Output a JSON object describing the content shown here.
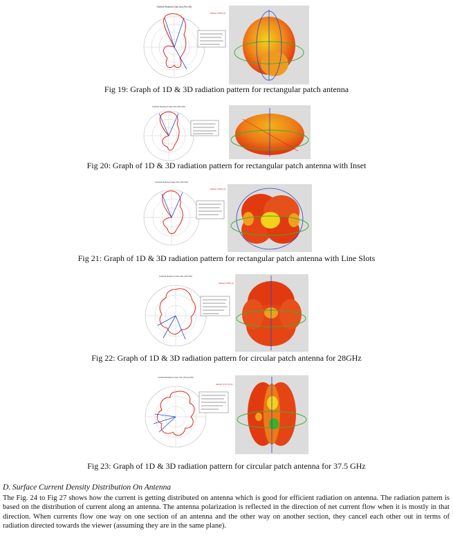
{
  "figures": [
    {
      "id": "fig19",
      "caption": "Fig 19: Graph of 1D & 3D radiation pattern for rectangular patch antenna",
      "polar_plot": {
        "title": "Farfield Realized Gain Abs (Phi=90)",
        "legend": "farfield (f=28) [1]"
      },
      "pattern_3d": {
        "variant": "ball"
      }
    },
    {
      "id": "fig20",
      "caption": "Fig 20: Graph of 1D & 3D radiation pattern for rectangular patch antenna with Inset",
      "polar_plot": {
        "title": "Farfield Realized Gain Abs (Phi=90)",
        "legend": ""
      },
      "pattern_3d": {
        "variant": "dome"
      }
    },
    {
      "id": "fig21",
      "caption": "Fig 21: Graph of 1D & 3D radiation pattern for rectangular patch antenna with Line Slots",
      "polar_plot": {
        "title": "Farfield Realized Gain Abs (Phi=90)",
        "legend": "farfield (f=28) [1]"
      },
      "pattern_3d": {
        "variant": "lobed"
      }
    },
    {
      "id": "fig22",
      "caption": "Fig 22: Graph of 1D & 3D radiation pattern for circular patch antenna for 28GHz",
      "polar_plot": {
        "title": "Farfield Realized Gain Abs (Phi=90)",
        "legend": "farfield (f=28) [1]"
      },
      "pattern_3d": {
        "variant": "cluster"
      }
    },
    {
      "id": "fig23",
      "caption": "Fig 23: Graph of 1D & 3D radiation pattern for circular patch antenna for 37.5 GHz",
      "polar_plot": {
        "title": "Farfield Realized Gain Abs (Theta=90)",
        "legend": "farfield (f=37.5) [1]"
      },
      "pattern_3d": {
        "variant": "segmented"
      }
    }
  ],
  "section": {
    "heading": "D.   Surface Current Density Distribution On Antenna",
    "body": "The Fig. 24 to Fig 27 shows how the current is getting distributed on antenna which is good for efficient radiation on antenna. The radiation pattern is based on the distribution of current along an antenna. The antenna polarization is reflected in the direction of net current flow when it is mostly in that direction. When currents flow one way on one section of an antenna and the other way on another section, they cancel each other out in terms of radiation directed towards the viewer (assuming they are in the same plane)."
  },
  "colors": {
    "pattern_red": "#e0261c",
    "pattern_blue": "#2244cc",
    "surface_red": "#e23a10",
    "surface_yellow": "#f2d21b",
    "surface_green": "#3fae2a"
  }
}
